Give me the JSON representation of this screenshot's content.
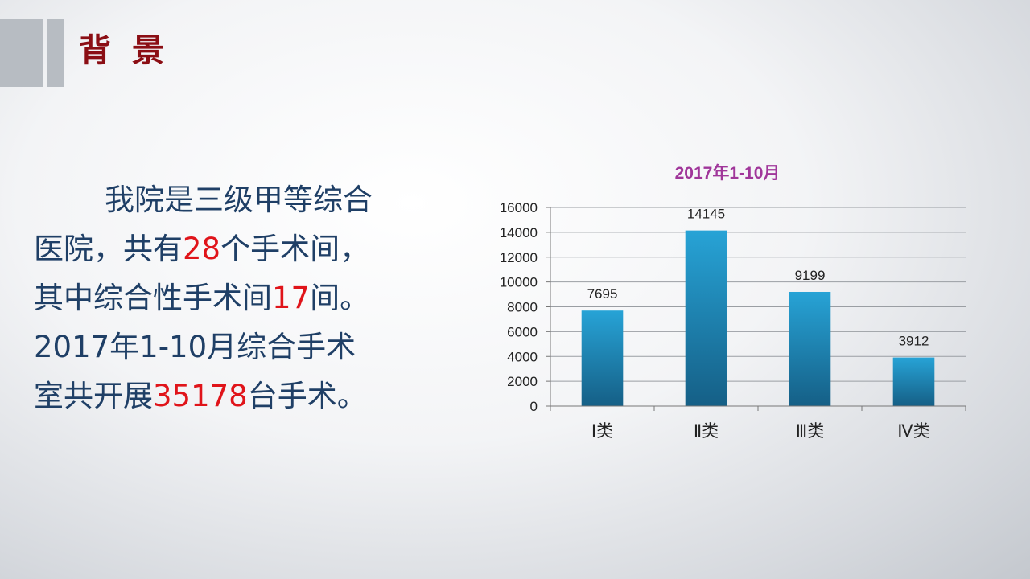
{
  "slide": {
    "title": "背 景"
  },
  "body": {
    "l1": "我院是三级甲等综合",
    "l2a": "医院，共有",
    "l2b": "28",
    "l2c": "个手术间，",
    "l3a": "其中综合性手术间",
    "l3b": "17",
    "l3c": "间。",
    "l4": "2017年1-10月综合手术",
    "l5a": "室共开展",
    "l5b": "35178",
    "l5c": "台手术。"
  },
  "colors": {
    "title": "#8b0e14",
    "body_text": "#1f3f66",
    "highlight": "#e0141a",
    "chart_title": "#a0369a",
    "bar_top": "#27a3d6",
    "bar_bottom": "#155f86"
  },
  "chart_data": {
    "type": "bar",
    "title": "2017年1-10月",
    "categories": [
      "Ⅰ类",
      "Ⅱ类",
      "Ⅲ类",
      "Ⅳ类"
    ],
    "values": [
      7695,
      14145,
      9199,
      3912
    ],
    "ylim": [
      0,
      16000
    ],
    "yticks": [
      0,
      2000,
      4000,
      6000,
      8000,
      10000,
      12000,
      14000,
      16000
    ],
    "grid": true,
    "legend": "none"
  }
}
